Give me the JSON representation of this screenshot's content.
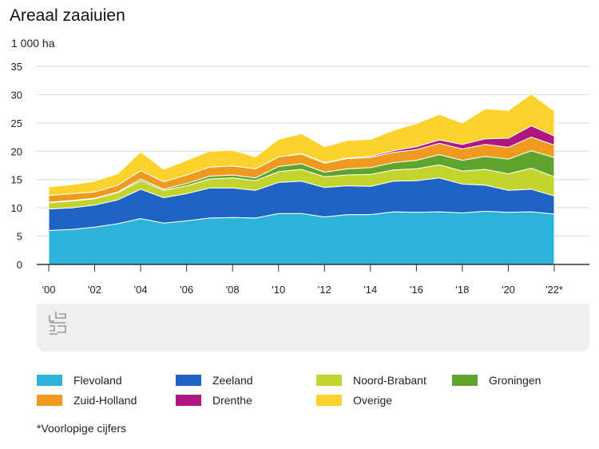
{
  "header": {
    "title": "Areaal zaaiuien",
    "unit": "1 000 ha"
  },
  "footnote": "*Voorlopige cijfers",
  "logo": {
    "icon": "cbs-logo-icon"
  },
  "chart_data": {
    "type": "area",
    "stacked": true,
    "ylim": [
      0,
      35
    ],
    "yticks": [
      0,
      5,
      10,
      15,
      20,
      25,
      30,
      35
    ],
    "grid": true,
    "x": [
      "2000",
      "2001",
      "2002",
      "2003",
      "2004",
      "2005",
      "2006",
      "2007",
      "2008",
      "2009",
      "2010",
      "2011",
      "2012",
      "2013",
      "2014",
      "2015",
      "2016",
      "2017",
      "2018",
      "2019",
      "2020",
      "2021",
      "2022*"
    ],
    "xtick_labels": [
      "'00",
      "",
      "'02",
      "",
      "'04",
      "",
      "'06",
      "",
      "'08",
      "",
      "'10",
      "",
      "'12",
      "",
      "'14",
      "",
      "'16",
      "",
      "'18",
      "",
      "'20",
      "",
      "'22*"
    ],
    "legend_position": "bottom",
    "series": [
      {
        "name": "Flevoland",
        "color": "#2bb3d9",
        "values": [
          6.0,
          6.2,
          6.6,
          7.2,
          8.1,
          7.3,
          7.7,
          8.2,
          8.3,
          8.2,
          9.0,
          9.0,
          8.4,
          8.8,
          8.8,
          9.3,
          9.2,
          9.3,
          9.1,
          9.4,
          9.2,
          9.3,
          8.9
        ]
      },
      {
        "name": "Zeeland",
        "color": "#1f63c4",
        "values": [
          3.8,
          3.8,
          3.9,
          4.2,
          5.2,
          4.5,
          4.8,
          5.3,
          5.2,
          4.9,
          5.5,
          5.7,
          5.2,
          5.1,
          5.0,
          5.4,
          5.6,
          6.0,
          5.1,
          4.6,
          3.9,
          4.0,
          3.2
        ]
      },
      {
        "name": "Noord-Brabant",
        "color": "#c3d42e",
        "values": [
          1.1,
          1.2,
          1.1,
          1.3,
          1.5,
          1.3,
          1.4,
          1.6,
          1.8,
          1.7,
          1.9,
          2.1,
          1.9,
          1.9,
          2.1,
          2.0,
          2.1,
          2.3,
          2.3,
          2.8,
          2.9,
          3.7,
          3.4
        ]
      },
      {
        "name": "Groningen",
        "color": "#5ea42d",
        "values": [
          0.1,
          0.1,
          0.1,
          0.1,
          0.3,
          0.2,
          0.4,
          0.5,
          0.5,
          0.5,
          0.9,
          1.0,
          0.8,
          1.1,
          1.2,
          1.3,
          1.5,
          1.8,
          1.9,
          2.3,
          2.6,
          3.1,
          3.4
        ]
      },
      {
        "name": "Zuid-Holland",
        "color": "#ef9a1f",
        "values": [
          1.2,
          1.2,
          1.1,
          1.2,
          1.5,
          1.3,
          1.5,
          1.6,
          1.6,
          1.6,
          1.7,
          1.7,
          1.6,
          1.8,
          1.8,
          1.8,
          1.9,
          2.0,
          2.0,
          2.1,
          2.1,
          2.4,
          2.2
        ]
      },
      {
        "name": "Drenthe",
        "color": "#b0167f",
        "values": [
          0.0,
          0.0,
          0.0,
          0.0,
          0.0,
          0.0,
          0.0,
          0.0,
          0.0,
          0.0,
          0.0,
          0.1,
          0.1,
          0.1,
          0.2,
          0.3,
          0.5,
          0.6,
          0.8,
          1.0,
          1.6,
          2.0,
          1.6
        ]
      },
      {
        "name": "Overige",
        "color": "#fdd22c",
        "values": [
          1.5,
          1.6,
          1.9,
          2.0,
          3.3,
          2.2,
          2.6,
          2.8,
          2.8,
          2.1,
          3.1,
          3.5,
          2.8,
          3.1,
          3.0,
          3.6,
          4.1,
          4.5,
          3.8,
          5.3,
          4.9,
          5.6,
          4.4
        ]
      }
    ]
  }
}
